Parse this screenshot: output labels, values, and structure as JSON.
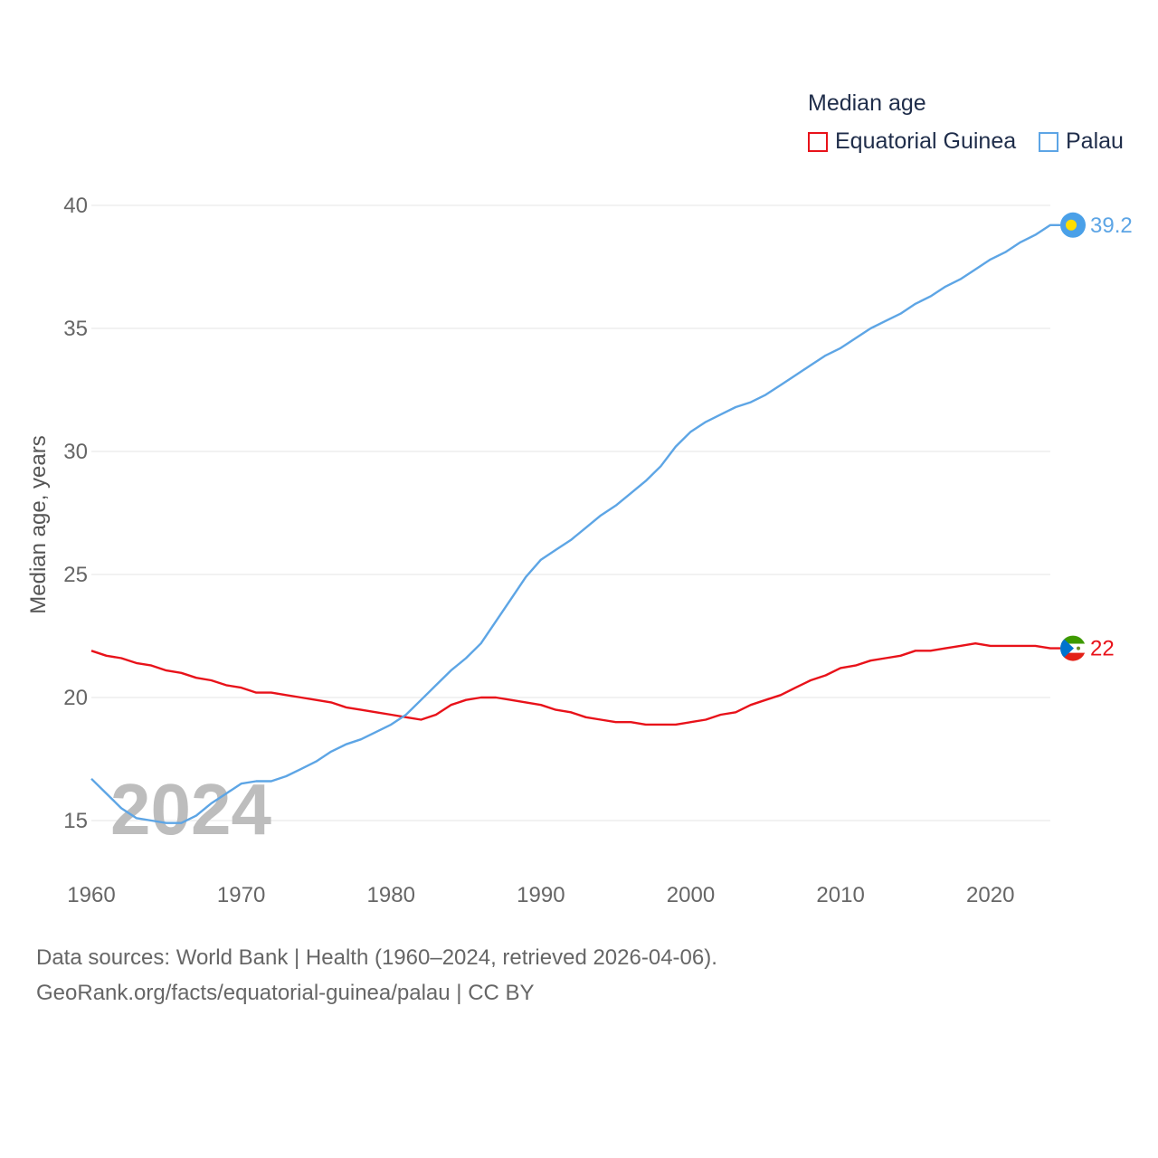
{
  "legend": {
    "title": "Median age",
    "items": [
      {
        "label": "Equatorial Guinea",
        "color": "#e8121a"
      },
      {
        "label": "Palau",
        "color": "#5da5e5"
      }
    ]
  },
  "footer": {
    "line1": "Data sources: World Bank | Health (1960–2024, retrieved 2026-04-06).",
    "line2": "GeoRank.org/facts/equatorial-guinea/palau | CC BY"
  },
  "chart_data": {
    "type": "line",
    "title": "Median age",
    "xlabel": "",
    "ylabel": "Median age, years",
    "xlim": [
      1960,
      2024
    ],
    "ylim": [
      15,
      40
    ],
    "x_ticks": [
      1960,
      1970,
      1980,
      1990,
      2000,
      2010,
      2020
    ],
    "y_ticks": [
      15,
      20,
      25,
      30,
      35,
      40
    ],
    "grid": true,
    "legend_position": "top-right",
    "year_watermark": "2024",
    "x": [
      1960,
      1961,
      1962,
      1963,
      1964,
      1965,
      1966,
      1967,
      1968,
      1969,
      1970,
      1971,
      1972,
      1973,
      1974,
      1975,
      1976,
      1977,
      1978,
      1979,
      1980,
      1981,
      1982,
      1983,
      1984,
      1985,
      1986,
      1987,
      1988,
      1989,
      1990,
      1991,
      1992,
      1993,
      1994,
      1995,
      1996,
      1997,
      1998,
      1999,
      2000,
      2001,
      2002,
      2003,
      2004,
      2005,
      2006,
      2007,
      2008,
      2009,
      2010,
      2011,
      2012,
      2013,
      2014,
      2015,
      2016,
      2017,
      2018,
      2019,
      2020,
      2021,
      2022,
      2023,
      2024
    ],
    "series": [
      {
        "name": "Equatorial Guinea",
        "color": "#e8121a",
        "end_label": "22",
        "flag": "equatorial-guinea-flag",
        "values": [
          21.9,
          21.7,
          21.6,
          21.4,
          21.3,
          21.1,
          21.0,
          20.8,
          20.7,
          20.5,
          20.4,
          20.2,
          20.2,
          20.1,
          20.0,
          19.9,
          19.8,
          19.6,
          19.5,
          19.4,
          19.3,
          19.2,
          19.1,
          19.3,
          19.7,
          19.9,
          20.0,
          20.0,
          19.9,
          19.8,
          19.7,
          19.5,
          19.4,
          19.2,
          19.1,
          19.0,
          19.0,
          18.9,
          18.9,
          18.9,
          19.0,
          19.1,
          19.3,
          19.4,
          19.7,
          19.9,
          20.1,
          20.4,
          20.7,
          20.9,
          21.2,
          21.3,
          21.5,
          21.6,
          21.7,
          21.9,
          21.9,
          22.0,
          22.1,
          22.2,
          22.1,
          22.1,
          22.1,
          22.1,
          22.0
        ]
      },
      {
        "name": "Palau",
        "color": "#5da5e5",
        "end_label": "39.2",
        "flag": "palau-flag",
        "values": [
          16.7,
          16.1,
          15.5,
          15.1,
          15.0,
          14.9,
          14.9,
          15.2,
          15.7,
          16.1,
          16.5,
          16.6,
          16.6,
          16.8,
          17.1,
          17.4,
          17.8,
          18.1,
          18.3,
          18.6,
          18.9,
          19.3,
          19.9,
          20.5,
          21.1,
          21.6,
          22.2,
          23.1,
          24.0,
          24.9,
          25.6,
          26.0,
          26.4,
          26.9,
          27.4,
          27.8,
          28.3,
          28.8,
          29.4,
          30.2,
          30.8,
          31.2,
          31.5,
          31.8,
          32.0,
          32.3,
          32.7,
          33.1,
          33.5,
          33.9,
          34.2,
          34.6,
          35.0,
          35.3,
          35.6,
          36.0,
          36.3,
          36.7,
          37.0,
          37.4,
          37.8,
          38.1,
          38.5,
          38.8,
          39.2
        ]
      }
    ]
  }
}
